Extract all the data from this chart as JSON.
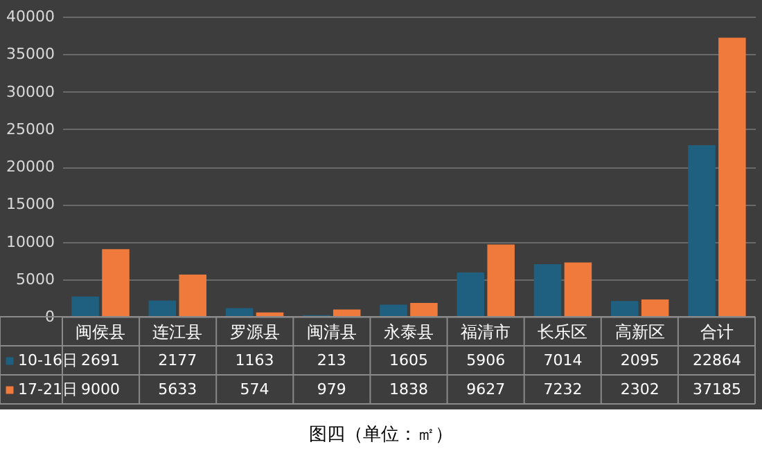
{
  "chart_data": {
    "type": "bar",
    "categories": [
      "闽侯县",
      "连江县",
      "罗源县",
      "闽清县",
      "永泰县",
      "福清市",
      "长乐区",
      "高新区",
      "合计"
    ],
    "series": [
      {
        "name": "10-16日",
        "color": "#1f5f7f",
        "values": [
          2691,
          2177,
          1163,
          213,
          1605,
          5906,
          7014,
          2095,
          22864
        ]
      },
      {
        "name": "17-21日",
        "color": "#f07a3c",
        "values": [
          9000,
          5633,
          574,
          979,
          1838,
          9627,
          7232,
          2302,
          37185
        ]
      }
    ],
    "ylim": [
      0,
      40000
    ],
    "yticks": [
      0,
      5000,
      10000,
      15000,
      20000,
      25000,
      30000,
      35000,
      40000
    ],
    "grid": "y",
    "data_labels": true,
    "legend": "bottom",
    "annotations": [
      "图四（单位：㎡）"
    ]
  }
}
